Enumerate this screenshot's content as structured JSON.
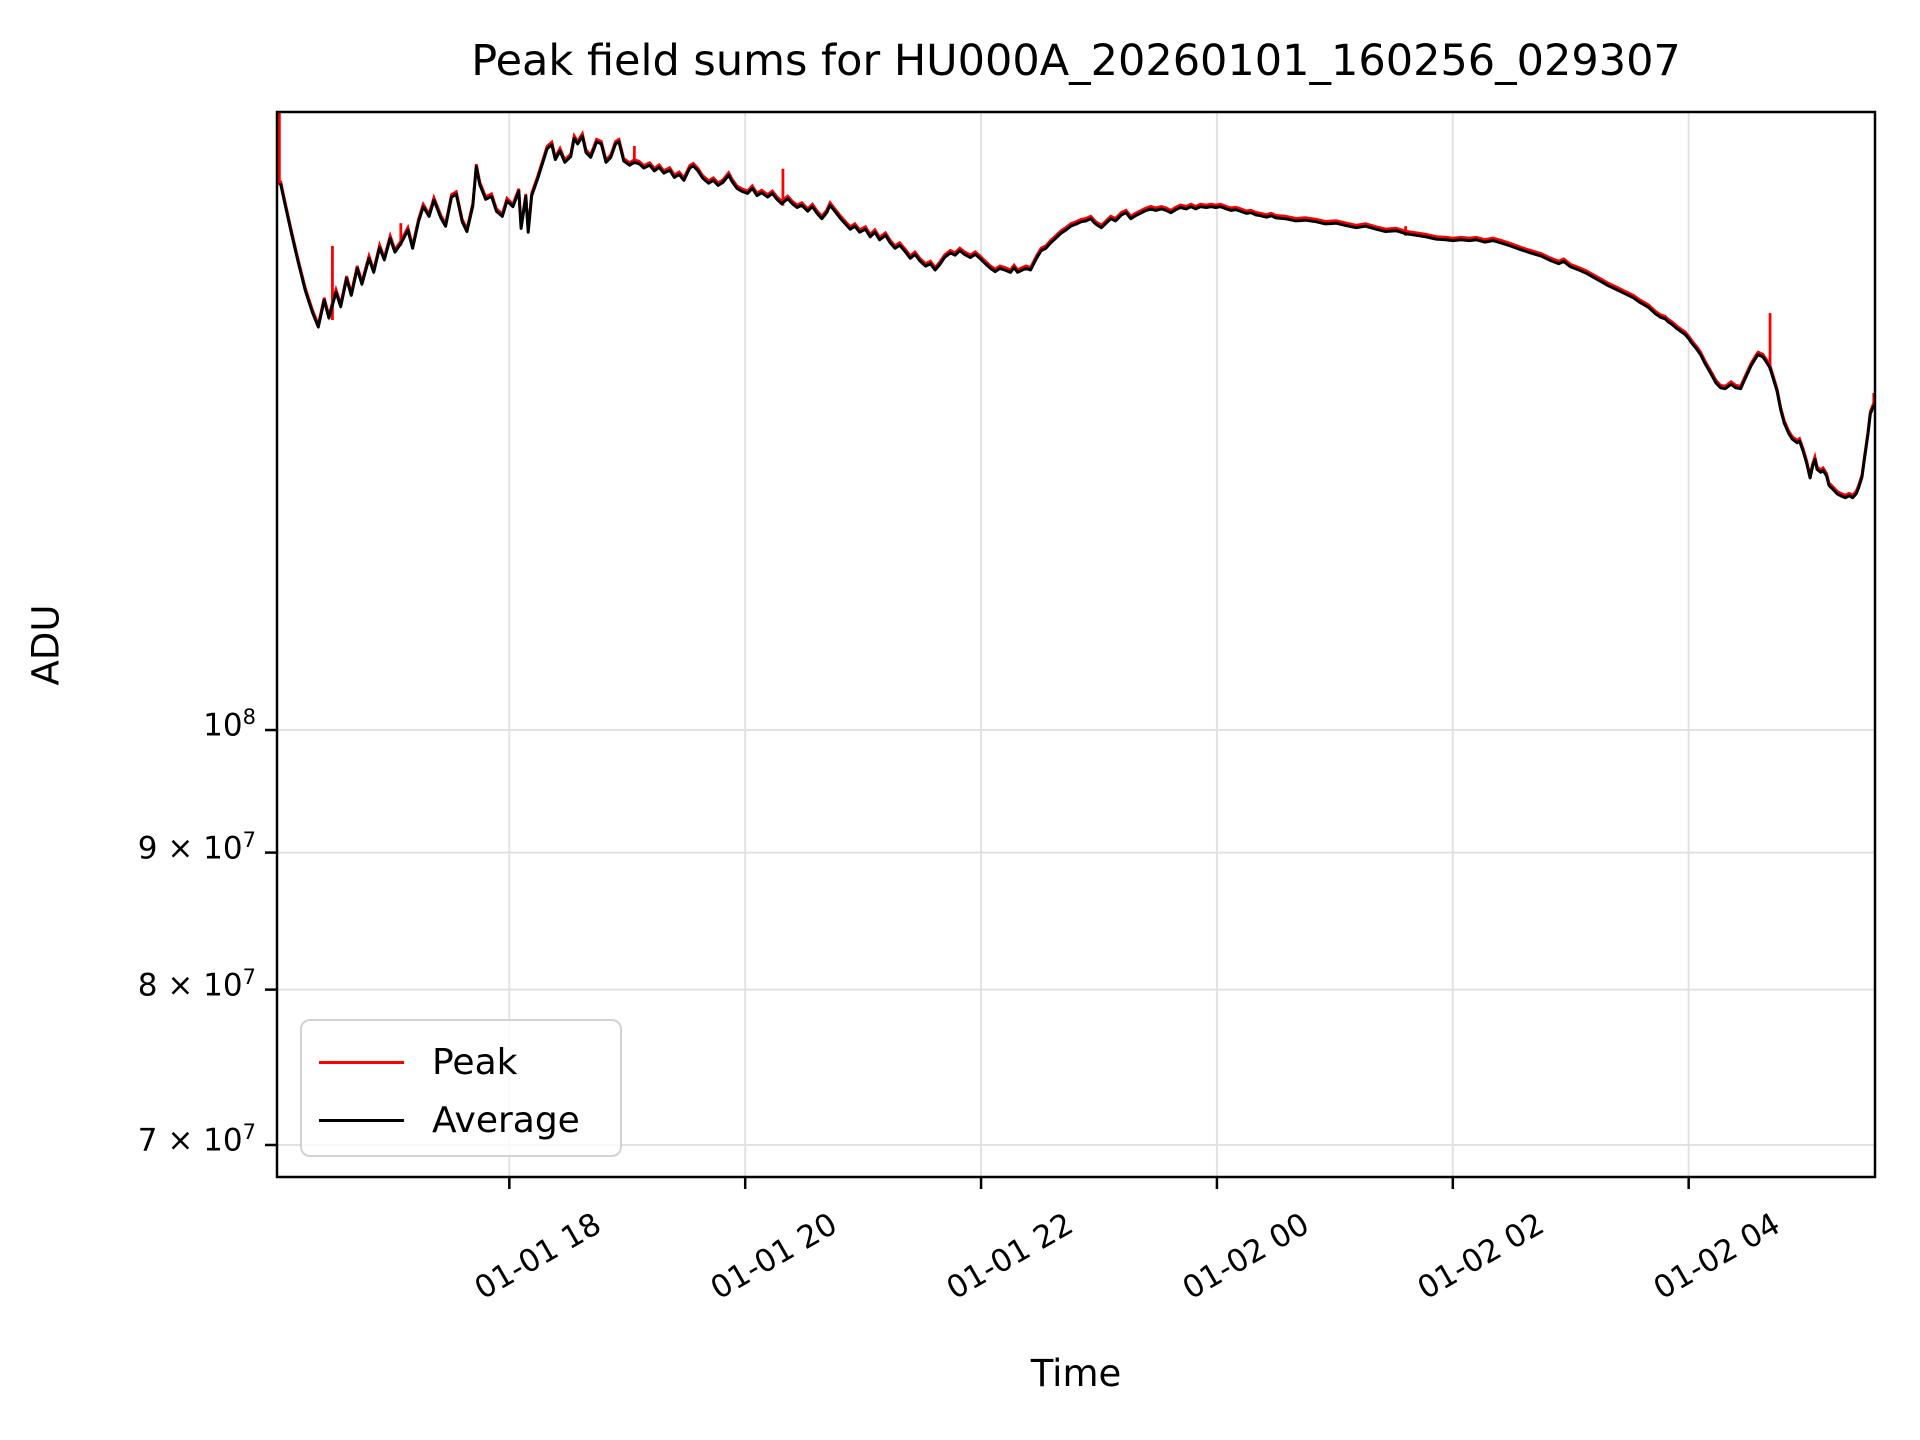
{
  "chart_data": {
    "type": "line",
    "title": "Peak field sums for HU000A_20260101_160256_029307",
    "xlabel": "Time",
    "ylabel": "ADU",
    "yscale": "log",
    "grid": true,
    "legend_position": "lower left",
    "value_unit": "1e6 ADU",
    "x_unit": "hours since 01-01 00:00",
    "xlim": [
      16.03,
      29.58
    ],
    "ylim": [
      68.1,
      170.1
    ],
    "x_ticks": [
      {
        "t": 18,
        "label": "01-01 18"
      },
      {
        "t": 20,
        "label": "01-01 20"
      },
      {
        "t": 22,
        "label": "01-01 22"
      },
      {
        "t": 24,
        "label": "01-02 00"
      },
      {
        "t": 26,
        "label": "01-02 02"
      },
      {
        "t": 28,
        "label": "01-02 04"
      }
    ],
    "y_ticks": [
      {
        "v": 100,
        "base": "10",
        "exp": "8"
      },
      {
        "v": 90,
        "base": "9 × 10",
        "exp": "7"
      },
      {
        "v": 80,
        "base": "8 × 10",
        "exp": "7"
      },
      {
        "v": 70,
        "base": "7 × 10",
        "exp": "7"
      }
    ],
    "series": [
      {
        "name": "Peak",
        "color": "#ff0000"
      },
      {
        "name": "Average",
        "color": "#000000"
      }
    ],
    "average_points": [
      [
        16.06,
        160.0
      ],
      [
        16.09,
        157.7
      ],
      [
        16.15,
        153.4
      ],
      [
        16.21,
        149.5
      ],
      [
        16.27,
        145.9
      ],
      [
        16.33,
        143.2
      ],
      [
        16.38,
        141.4
      ],
      [
        16.43,
        144.7
      ],
      [
        16.47,
        142.5
      ],
      [
        16.53,
        145.7
      ],
      [
        16.57,
        143.9
      ],
      [
        16.62,
        147.4
      ],
      [
        16.66,
        145.3
      ],
      [
        16.71,
        148.7
      ],
      [
        16.75,
        146.7
      ],
      [
        16.81,
        150.0
      ],
      [
        16.85,
        148.2
      ],
      [
        16.9,
        151.4
      ],
      [
        16.94,
        149.8
      ],
      [
        16.99,
        152.6
      ],
      [
        17.03,
        150.8
      ],
      [
        17.08,
        151.9
      ],
      [
        17.14,
        153.7
      ],
      [
        17.18,
        151.3
      ],
      [
        17.23,
        154.8
      ],
      [
        17.27,
        156.8
      ],
      [
        17.32,
        155.5
      ],
      [
        17.36,
        157.7
      ],
      [
        17.42,
        155.3
      ],
      [
        17.46,
        154.2
      ],
      [
        17.51,
        158.1
      ],
      [
        17.55,
        158.5
      ],
      [
        17.6,
        154.8
      ],
      [
        17.64,
        153.5
      ],
      [
        17.69,
        156.9
      ],
      [
        17.72,
        162.3
      ],
      [
        17.75,
        159.8
      ],
      [
        17.8,
        157.8
      ],
      [
        17.85,
        158.2
      ],
      [
        17.89,
        156.2
      ],
      [
        17.94,
        155.5
      ],
      [
        17.98,
        157.6
      ],
      [
        18.03,
        156.8
      ],
      [
        18.08,
        158.9
      ],
      [
        18.1,
        153.9
      ],
      [
        18.14,
        158.2
      ],
      [
        18.16,
        153.4
      ],
      [
        18.19,
        158.3
      ],
      [
        18.24,
        160.6
      ],
      [
        18.28,
        162.7
      ],
      [
        18.32,
        164.8
      ],
      [
        18.36,
        165.4
      ],
      [
        18.39,
        163.3
      ],
      [
        18.43,
        164.5
      ],
      [
        18.47,
        162.9
      ],
      [
        18.52,
        163.7
      ],
      [
        18.55,
        166.3
      ],
      [
        18.58,
        165.5
      ],
      [
        18.62,
        166.6
      ],
      [
        18.65,
        164.3
      ],
      [
        18.69,
        163.6
      ],
      [
        18.74,
        165.8
      ],
      [
        18.78,
        165.5
      ],
      [
        18.82,
        162.9
      ],
      [
        18.86,
        163.6
      ],
      [
        18.9,
        165.5
      ],
      [
        18.93,
        165.8
      ],
      [
        18.97,
        163.1
      ],
      [
        19.02,
        162.5
      ],
      [
        19.06,
        162.9
      ],
      [
        19.1,
        162.7
      ],
      [
        19.14,
        162.1
      ],
      [
        19.19,
        162.5
      ],
      [
        19.23,
        161.7
      ],
      [
        19.27,
        162.2
      ],
      [
        19.31,
        161.4
      ],
      [
        19.36,
        161.8
      ],
      [
        19.4,
        160.8
      ],
      [
        19.44,
        161.2
      ],
      [
        19.48,
        160.4
      ],
      [
        19.53,
        162.1
      ],
      [
        19.56,
        162.4
      ],
      [
        19.6,
        161.7
      ],
      [
        19.64,
        160.7
      ],
      [
        19.69,
        160.0
      ],
      [
        19.73,
        160.4
      ],
      [
        19.77,
        159.7
      ],
      [
        19.81,
        160.1
      ],
      [
        19.86,
        161.1
      ],
      [
        19.89,
        160.2
      ],
      [
        19.93,
        159.3
      ],
      [
        19.97,
        158.9
      ],
      [
        20.02,
        158.6
      ],
      [
        20.06,
        159.3
      ],
      [
        20.1,
        158.3
      ],
      [
        20.14,
        158.7
      ],
      [
        20.19,
        158.1
      ],
      [
        20.23,
        158.6
      ],
      [
        20.27,
        157.8
      ],
      [
        20.31,
        157.2
      ],
      [
        20.36,
        157.9
      ],
      [
        20.4,
        157.2
      ],
      [
        20.44,
        156.7
      ],
      [
        20.48,
        157.0
      ],
      [
        20.53,
        156.2
      ],
      [
        20.57,
        156.8
      ],
      [
        20.61,
        155.9
      ],
      [
        20.65,
        155.2
      ],
      [
        20.69,
        156.0
      ],
      [
        20.72,
        157.0
      ],
      [
        20.76,
        156.2
      ],
      [
        20.81,
        155.2
      ],
      [
        20.85,
        154.5
      ],
      [
        20.89,
        153.8
      ],
      [
        20.93,
        154.2
      ],
      [
        20.97,
        153.4
      ],
      [
        21.02,
        153.8
      ],
      [
        21.06,
        152.8
      ],
      [
        21.1,
        153.4
      ],
      [
        21.14,
        152.4
      ],
      [
        21.19,
        153.0
      ],
      [
        21.23,
        152.0
      ],
      [
        21.27,
        151.3
      ],
      [
        21.31,
        151.7
      ],
      [
        21.36,
        150.8
      ],
      [
        21.4,
        150.0
      ],
      [
        21.44,
        150.5
      ],
      [
        21.48,
        149.7
      ],
      [
        21.53,
        149.0
      ],
      [
        21.57,
        149.3
      ],
      [
        21.61,
        148.5
      ],
      [
        21.65,
        149.2
      ],
      [
        21.69,
        150.1
      ],
      [
        21.74,
        150.7
      ],
      [
        21.78,
        150.4
      ],
      [
        21.82,
        151.0
      ],
      [
        21.86,
        150.5
      ],
      [
        21.91,
        150.1
      ],
      [
        21.95,
        150.5
      ],
      [
        21.99,
        150.0
      ],
      [
        22.03,
        149.4
      ],
      [
        22.08,
        148.7
      ],
      [
        22.12,
        148.3
      ],
      [
        22.16,
        148.7
      ],
      [
        22.2,
        148.5
      ],
      [
        22.25,
        148.2
      ],
      [
        22.28,
        148.8
      ],
      [
        22.31,
        148.2
      ],
      [
        22.35,
        148.5
      ],
      [
        22.38,
        148.7
      ],
      [
        22.42,
        148.5
      ],
      [
        22.47,
        150.0
      ],
      [
        22.51,
        151.0
      ],
      [
        22.55,
        151.3
      ],
      [
        22.59,
        152.0
      ],
      [
        22.64,
        152.7
      ],
      [
        22.68,
        153.3
      ],
      [
        22.72,
        153.7
      ],
      [
        22.76,
        154.2
      ],
      [
        22.81,
        154.5
      ],
      [
        22.85,
        154.8
      ],
      [
        22.89,
        154.9
      ],
      [
        22.93,
        155.2
      ],
      [
        22.97,
        154.5
      ],
      [
        23.02,
        154.0
      ],
      [
        23.06,
        154.6
      ],
      [
        23.1,
        155.2
      ],
      [
        23.14,
        154.9
      ],
      [
        23.19,
        155.7
      ],
      [
        23.23,
        156.0
      ],
      [
        23.27,
        155.2
      ],
      [
        23.31,
        155.6
      ],
      [
        23.36,
        156.0
      ],
      [
        23.4,
        156.3
      ],
      [
        23.44,
        156.5
      ],
      [
        23.48,
        156.3
      ],
      [
        23.53,
        156.5
      ],
      [
        23.57,
        156.3
      ],
      [
        23.61,
        156.0
      ],
      [
        23.65,
        156.4
      ],
      [
        23.69,
        156.7
      ],
      [
        23.74,
        156.5
      ],
      [
        23.78,
        156.8
      ],
      [
        23.82,
        156.5
      ],
      [
        23.86,
        156.8
      ],
      [
        23.91,
        156.7
      ],
      [
        23.95,
        156.8
      ],
      [
        23.99,
        156.7
      ],
      [
        24.03,
        156.8
      ],
      [
        24.08,
        156.5
      ],
      [
        24.12,
        156.3
      ],
      [
        24.16,
        156.4
      ],
      [
        24.2,
        156.2
      ],
      [
        24.25,
        155.9
      ],
      [
        24.29,
        156.0
      ],
      [
        24.33,
        155.7
      ],
      [
        24.37,
        155.6
      ],
      [
        24.42,
        155.4
      ],
      [
        24.46,
        155.6
      ],
      [
        24.5,
        155.3
      ],
      [
        24.58,
        155.2
      ],
      [
        24.67,
        154.9
      ],
      [
        24.75,
        155.0
      ],
      [
        24.84,
        154.8
      ],
      [
        24.92,
        154.5
      ],
      [
        25.01,
        154.6
      ],
      [
        25.09,
        154.3
      ],
      [
        25.18,
        154.0
      ],
      [
        25.26,
        154.2
      ],
      [
        25.35,
        153.8
      ],
      [
        25.43,
        153.5
      ],
      [
        25.52,
        153.6
      ],
      [
        25.6,
        153.2
      ],
      [
        25.69,
        153.0
      ],
      [
        25.77,
        152.8
      ],
      [
        25.86,
        152.5
      ],
      [
        25.94,
        152.4
      ],
      [
        26.0,
        152.3
      ],
      [
        26.07,
        152.4
      ],
      [
        26.14,
        152.3
      ],
      [
        26.2,
        152.4
      ],
      [
        26.27,
        152.1
      ],
      [
        26.34,
        152.3
      ],
      [
        26.41,
        152.0
      ],
      [
        26.49,
        151.6
      ],
      [
        26.58,
        151.1
      ],
      [
        26.66,
        150.7
      ],
      [
        26.75,
        150.3
      ],
      [
        26.83,
        149.7
      ],
      [
        26.9,
        149.3
      ],
      [
        26.94,
        149.6
      ],
      [
        27.0,
        148.9
      ],
      [
        27.07,
        148.5
      ],
      [
        27.13,
        148.1
      ],
      [
        27.19,
        147.6
      ],
      [
        27.25,
        147.1
      ],
      [
        27.32,
        146.5
      ],
      [
        27.39,
        146.0
      ],
      [
        27.46,
        145.5
      ],
      [
        27.53,
        145.0
      ],
      [
        27.59,
        144.4
      ],
      [
        27.66,
        143.8
      ],
      [
        27.72,
        143.0
      ],
      [
        27.76,
        142.6
      ],
      [
        27.8,
        142.4
      ],
      [
        27.83,
        142.0
      ],
      [
        27.86,
        141.7
      ],
      [
        27.9,
        141.2
      ],
      [
        27.93,
        140.9
      ],
      [
        27.97,
        140.5
      ],
      [
        28.0,
        140.0
      ],
      [
        28.03,
        139.4
      ],
      [
        28.07,
        138.7
      ],
      [
        28.1,
        138.1
      ],
      [
        28.14,
        137.0
      ],
      [
        28.19,
        135.8
      ],
      [
        28.23,
        134.8
      ],
      [
        28.27,
        134.2
      ],
      [
        28.31,
        134.1
      ],
      [
        28.36,
        134.6
      ],
      [
        28.4,
        134.2
      ],
      [
        28.44,
        134.1
      ],
      [
        28.48,
        135.3
      ],
      [
        28.53,
        136.8
      ],
      [
        28.57,
        137.7
      ],
      [
        28.59,
        138.1
      ],
      [
        28.63,
        137.8
      ],
      [
        28.66,
        137.2
      ],
      [
        28.69,
        136.5
      ],
      [
        28.71,
        135.6
      ],
      [
        28.75,
        133.8
      ],
      [
        28.78,
        131.7
      ],
      [
        28.81,
        130.2
      ],
      [
        28.85,
        129.0
      ],
      [
        28.88,
        128.4
      ],
      [
        28.92,
        128.0
      ],
      [
        28.94,
        128.2
      ],
      [
        28.97,
        127.1
      ],
      [
        29.0,
        125.8
      ],
      [
        29.03,
        124.2
      ],
      [
        29.05,
        125.4
      ],
      [
        29.07,
        126.2
      ],
      [
        29.09,
        125.1
      ],
      [
        29.12,
        124.8
      ],
      [
        29.14,
        125.0
      ],
      [
        29.17,
        124.4
      ],
      [
        29.19,
        123.4
      ],
      [
        29.23,
        122.9
      ],
      [
        29.26,
        122.5
      ],
      [
        29.29,
        122.3
      ],
      [
        29.33,
        122.1
      ],
      [
        29.36,
        122.3
      ],
      [
        29.39,
        122.1
      ],
      [
        29.42,
        122.5
      ],
      [
        29.44,
        123.1
      ],
      [
        29.47,
        124.3
      ],
      [
        29.49,
        126.2
      ],
      [
        29.52,
        128.9
      ],
      [
        29.54,
        131.2
      ],
      [
        29.57,
        132.2
      ]
    ],
    "peak_spikes": [
      [
        16.05,
        170.1
      ],
      [
        16.5,
        151.6
      ],
      [
        17.08,
        154.6
      ],
      [
        19.06,
        165.2
      ],
      [
        20.32,
        162.0
      ],
      [
        25.6,
        154.2
      ],
      [
        28.69,
        143.1
      ],
      [
        29.57,
        133.6
      ]
    ]
  }
}
